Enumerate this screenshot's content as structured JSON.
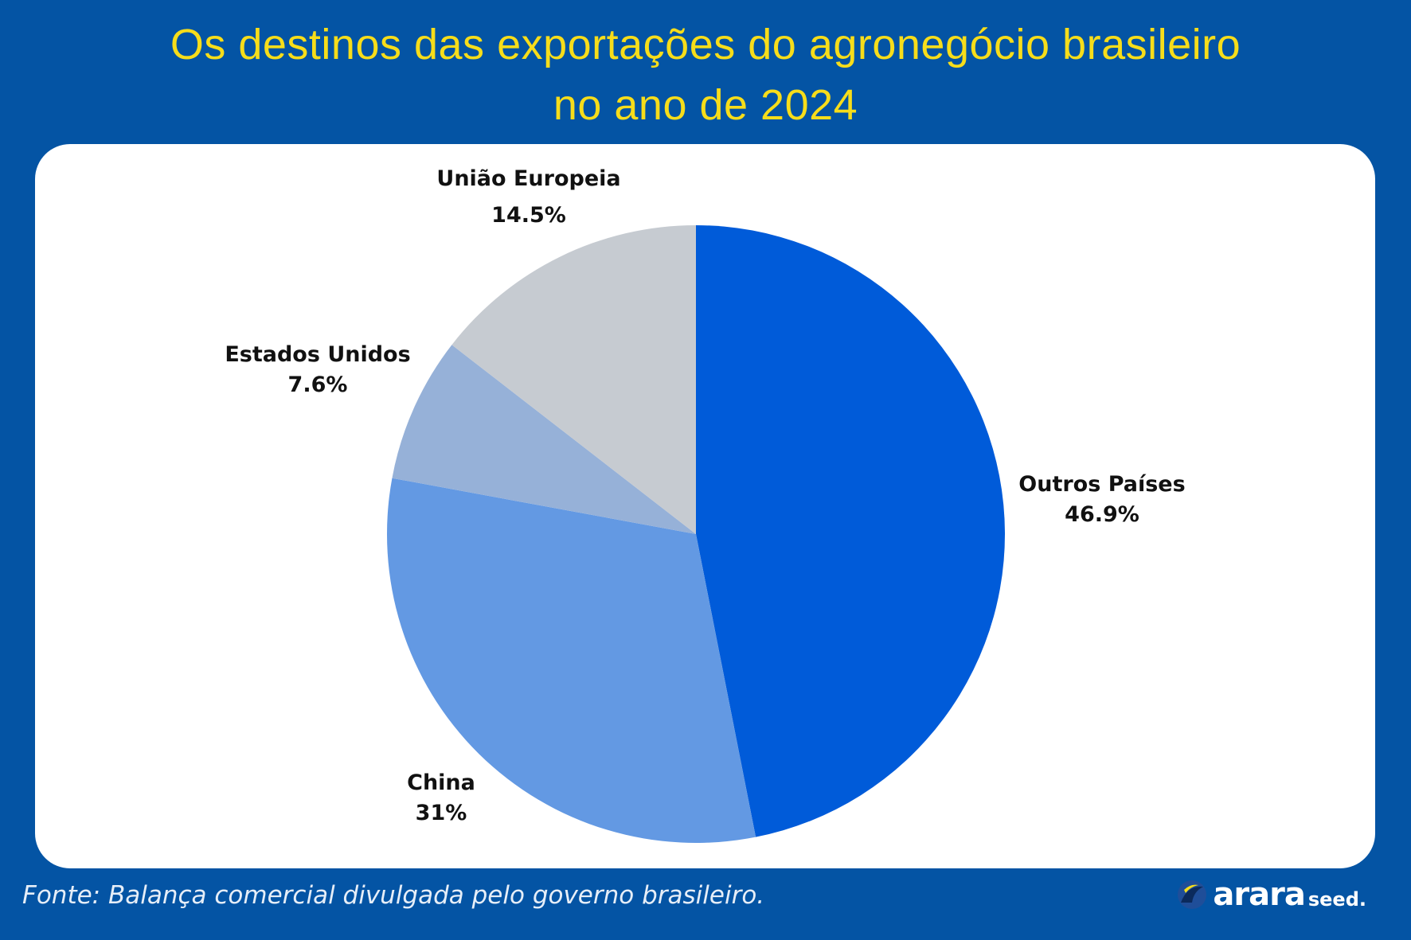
{
  "title": {
    "line1": "Os destinos das exportações do agronegócio brasileiro",
    "line2": "no ano de 2024"
  },
  "chart_data": {
    "type": "pie",
    "categories": [
      "Outros Países",
      "China",
      "Estados Unidos",
      "União Europeia"
    ],
    "values": [
      46.9,
      31,
      7.6,
      14.5
    ],
    "value_labels": [
      "46.9%",
      "31%",
      "7.6%",
      "14.5%"
    ],
    "colors": [
      "#005bd9",
      "#6399e3",
      "#96b1d8",
      "#c6cbd1"
    ],
    "start_angle_deg": 0,
    "direction": "clockwise"
  },
  "footer": {
    "source": "Fonte: Balança comercial divulgada pelo governo brasileiro."
  },
  "brand": {
    "name": "arara",
    "suffix": "seed.",
    "icon": "bird-logo-icon"
  }
}
